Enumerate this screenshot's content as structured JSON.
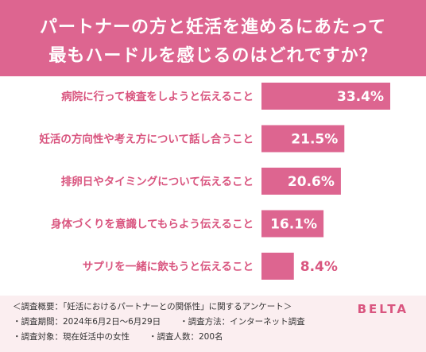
{
  "header": {
    "title_line1": "パートナーの方と妊活を進めるにあたって",
    "title_line2": "最もハードルを感じるのはどれですか？"
  },
  "chart_data": {
    "type": "bar",
    "orientation": "horizontal",
    "categories": [
      "病院に行って検査をしようと伝えること",
      "妊活の方向性や考え方について話し合うこと",
      "排卵日やタイミングについて伝えること",
      "身体づくりを意識してもらよう伝えること",
      "サプリを一緒に飲もうと伝えること"
    ],
    "values": [
      33.4,
      21.5,
      20.6,
      16.1,
      8.4
    ],
    "value_labels": [
      "33.4%",
      "21.5%",
      "20.6%",
      "16.1%",
      "8.4%"
    ],
    "xlim": [
      0,
      33.4
    ],
    "bar_color": "#dd6590",
    "label_color": "#d9557f"
  },
  "footer": {
    "line1": "＜調査概要：「妊活におけるパートナーとの関係性」に関するアンケート＞",
    "period": "・調査期間：2024年6月2日〜6月29日",
    "method": "・調査方法：インターネット調査",
    "target": "・調査対象：現在妊活中の女性",
    "count": "・調査人数：200名",
    "brand": "BELTA"
  }
}
